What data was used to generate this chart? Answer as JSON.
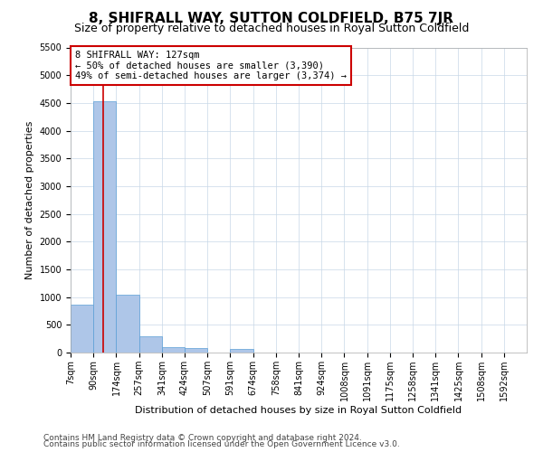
{
  "title": "8, SHIFRALL WAY, SUTTON COLDFIELD, B75 7JR",
  "subtitle": "Size of property relative to detached houses in Royal Sutton Coldfield",
  "xlabel": "Distribution of detached houses by size in Royal Sutton Coldfield",
  "ylabel": "Number of detached properties",
  "footnote1": "Contains HM Land Registry data © Crown copyright and database right 2024.",
  "footnote2": "Contains public sector information licensed under the Open Government Licence v3.0.",
  "bar_edges": [
    7,
    90,
    174,
    257,
    341,
    424,
    507,
    591,
    674,
    758,
    841,
    924,
    1008,
    1091,
    1175,
    1258,
    1341,
    1425,
    1508,
    1592,
    1675
  ],
  "bar_heights": [
    870,
    4530,
    1050,
    290,
    100,
    80,
    0,
    60,
    0,
    0,
    0,
    0,
    0,
    0,
    0,
    0,
    0,
    0,
    0,
    0
  ],
  "bar_color": "#aec6e8",
  "bar_edgecolor": "#5a9ed6",
  "grid_color": "#c8d8e8",
  "property_line_x": 127,
  "annotation_line1": "8 SHIFRALL WAY: 127sqm",
  "annotation_line2": "← 50% of detached houses are smaller (3,390)",
  "annotation_line3": "49% of semi-detached houses are larger (3,374) →",
  "annotation_box_color": "#ffffff",
  "annotation_box_edgecolor": "#cc0000",
  "property_line_color": "#cc0000",
  "ylim": [
    0,
    5500
  ],
  "yticks": [
    0,
    500,
    1000,
    1500,
    2000,
    2500,
    3000,
    3500,
    4000,
    4500,
    5000,
    5500
  ],
  "title_fontsize": 11,
  "subtitle_fontsize": 9,
  "label_fontsize": 8,
  "tick_fontsize": 7,
  "annotation_fontsize": 7.5,
  "footnote_fontsize": 6.5
}
